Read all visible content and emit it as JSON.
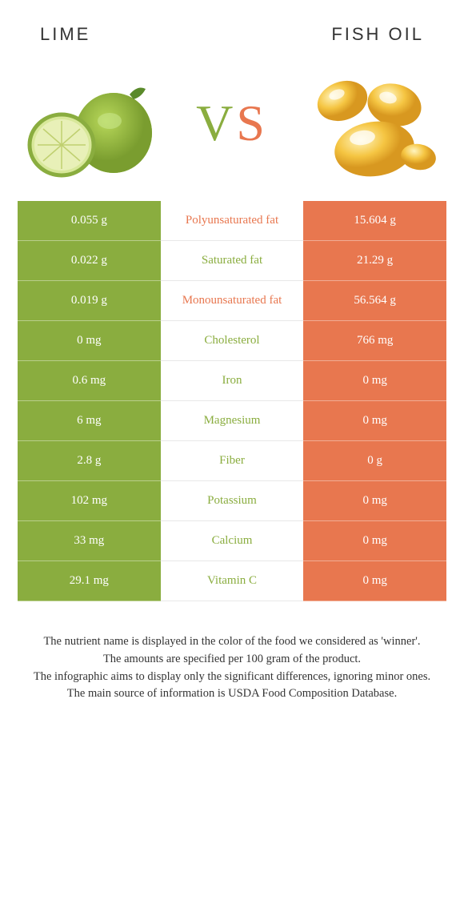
{
  "header": {
    "left_title": "Lime",
    "right_title": "Fish oil"
  },
  "vs": {
    "v": "V",
    "s": "S"
  },
  "colors": {
    "lime": "#8aad3f",
    "fish": "#e8774f",
    "text": "#333333",
    "bg": "#ffffff"
  },
  "rows": [
    {
      "left": "0.055 g",
      "label": "Polyunsaturated fat",
      "right": "15.604 g",
      "winner": "fish"
    },
    {
      "left": "0.022 g",
      "label": "Saturated fat",
      "right": "21.29 g",
      "winner": "lime"
    },
    {
      "left": "0.019 g",
      "label": "Monounsaturated fat",
      "right": "56.564 g",
      "winner": "fish"
    },
    {
      "left": "0 mg",
      "label": "Cholesterol",
      "right": "766 mg",
      "winner": "lime"
    },
    {
      "left": "0.6 mg",
      "label": "Iron",
      "right": "0 mg",
      "winner": "lime"
    },
    {
      "left": "6 mg",
      "label": "Magnesium",
      "right": "0 mg",
      "winner": "lime"
    },
    {
      "left": "2.8 g",
      "label": "Fiber",
      "right": "0 g",
      "winner": "lime"
    },
    {
      "left": "102 mg",
      "label": "Potassium",
      "right": "0 mg",
      "winner": "lime"
    },
    {
      "left": "33 mg",
      "label": "Calcium",
      "right": "0 mg",
      "winner": "lime"
    },
    {
      "left": "29.1 mg",
      "label": "Vitamin C",
      "right": "0 mg",
      "winner": "lime"
    }
  ],
  "footer": {
    "line1": "The nutrient name is displayed in the color of the food we considered as 'winner'.",
    "line2": "The amounts are specified per 100 gram of the product.",
    "line3": "The infographic aims to display only the significant differences, ignoring minor ones.",
    "line4": "The main source of information is USDA Food Composition Database."
  }
}
